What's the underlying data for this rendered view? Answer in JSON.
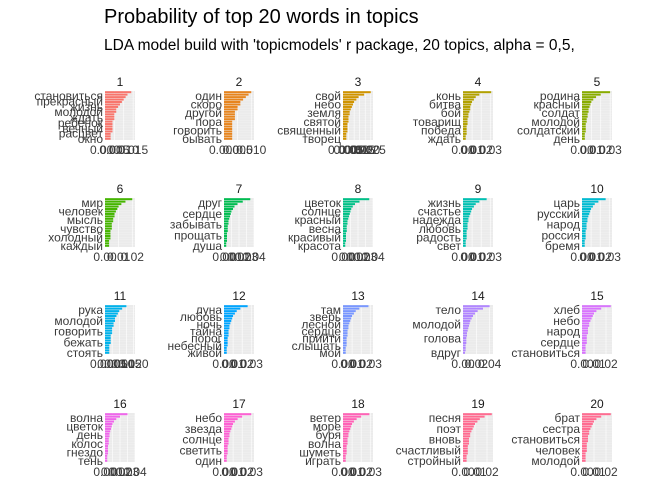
{
  "title": "Probability of top 20 words in topics",
  "subtitle": "LDA model build with 'topicmodels' r package, 20 topics, alpha = 0,5,",
  "chart_data": [
    {
      "type": "bar",
      "title": "1",
      "color": "#F8766D",
      "words": [
        "становиться",
        "прекрасный",
        "жизнь",
        "молодой",
        "ждать",
        "ребенок",
        "вечный",
        "расцвет",
        "окно"
      ],
      "values": [
        0.014,
        0.012,
        0.011,
        0.01,
        0.009,
        0.008,
        0.007,
        0.006,
        0.006,
        0.005,
        0.005,
        0.005,
        0.004,
        0.004,
        0.004,
        0.004,
        0.004,
        0.003,
        0.003,
        0.003
      ],
      "xticks": [
        "0.000",
        "0.005",
        "0.010",
        "0.015"
      ],
      "xlim": [
        0,
        0.016
      ]
    },
    {
      "type": "bar",
      "title": "2",
      "color": "#E7851E",
      "words": [
        "один",
        "скоро",
        "другой",
        "пора",
        "говорить",
        "бывать"
      ],
      "values": [
        0.01,
        0.009,
        0.008,
        0.007,
        0.006,
        0.006,
        0.005,
        0.005,
        0.004,
        0.004,
        0.004,
        0.004,
        0.003,
        0.003,
        0.003,
        0.003,
        0.003,
        0.003,
        0.003,
        0.003
      ],
      "xticks": [
        "0.000",
        "0.005",
        "0.010"
      ],
      "xlim": [
        0,
        0.011
      ]
    },
    {
      "type": "bar",
      "title": "3",
      "color": "#D09400",
      "words": [
        "свой",
        "небо",
        "земля",
        "святой",
        "священный",
        "творец"
      ],
      "values": [
        0.025,
        0.019,
        0.014,
        0.012,
        0.01,
        0.009,
        0.008,
        0.007,
        0.006,
        0.006,
        0.005,
        0.005,
        0.005,
        0.004,
        0.004,
        0.004,
        0.004,
        0.003,
        0.003,
        0.003
      ],
      "xticks": [
        "0.000",
        "0.005",
        "0.010",
        "0.015",
        "0.020",
        "0.025"
      ],
      "xlim": [
        0,
        0.027
      ]
    },
    {
      "type": "bar",
      "title": "4",
      "color": "#B2A100",
      "words": [
        "конь",
        "битва",
        "бой",
        "товарищ",
        "победа",
        "ждать"
      ],
      "values": [
        0.031,
        0.018,
        0.014,
        0.012,
        0.01,
        0.009,
        0.008,
        0.008,
        0.007,
        0.006,
        0.006,
        0.005,
        0.005,
        0.005,
        0.004,
        0.004,
        0.004,
        0.004,
        0.003,
        0.003
      ],
      "xticks": [
        "0.00",
        "0.01",
        "0.02",
        "0.03"
      ],
      "xlim": [
        0,
        0.033
      ]
    },
    {
      "type": "bar",
      "title": "5",
      "color": "#89AC00",
      "words": [
        "родина",
        "красный",
        "солдат",
        "молодой",
        "солдатский",
        "день"
      ],
      "values": [
        0.03,
        0.02,
        0.015,
        0.012,
        0.01,
        0.009,
        0.008,
        0.007,
        0.007,
        0.006,
        0.006,
        0.005,
        0.005,
        0.004,
        0.004,
        0.004,
        0.004,
        0.003,
        0.003,
        0.003
      ],
      "xticks": [
        "0.00",
        "0.01",
        "0.02",
        "0.03"
      ],
      "xlim": [
        0,
        0.032
      ]
    },
    {
      "type": "bar",
      "title": "6",
      "color": "#45B500",
      "words": [
        "мир",
        "человек",
        "мысль",
        "чувство",
        "холодный",
        "каждый"
      ],
      "values": [
        0.02,
        0.015,
        0.012,
        0.01,
        0.009,
        0.008,
        0.007,
        0.007,
        0.006,
        0.006,
        0.005,
        0.005,
        0.005,
        0.004,
        0.004,
        0.004,
        0.004,
        0.003,
        0.003,
        0.003
      ],
      "xticks": [
        "0.00",
        "0.01",
        "0.02"
      ],
      "xlim": [
        0,
        0.022
      ]
    },
    {
      "type": "bar",
      "title": "7",
      "color": "#00BC51",
      "words": [
        "друг",
        "сердце",
        "забывать",
        "прощать",
        "душа"
      ],
      "values": [
        0.035,
        0.025,
        0.018,
        0.014,
        0.012,
        0.01,
        0.009,
        0.008,
        0.007,
        0.006,
        0.006,
        0.005,
        0.005,
        0.005,
        0.004,
        0.004,
        0.004,
        0.004,
        0.003,
        0.003
      ],
      "xticks": [
        "0.00",
        "0.01",
        "0.02",
        "0.03",
        "0.04"
      ],
      "xlim": [
        0,
        0.04
      ]
    },
    {
      "type": "bar",
      "title": "8",
      "color": "#00C087",
      "words": [
        "цветок",
        "солнце",
        "красный",
        "весна",
        "красивый",
        "красота"
      ],
      "values": [
        0.035,
        0.022,
        0.016,
        0.013,
        0.011,
        0.01,
        0.009,
        0.008,
        0.007,
        0.006,
        0.006,
        0.005,
        0.005,
        0.005,
        0.004,
        0.004,
        0.004,
        0.004,
        0.003,
        0.003
      ],
      "xticks": [
        "0.00",
        "0.01",
        "0.02",
        "0.03",
        "0.04"
      ],
      "xlim": [
        0,
        0.04
      ]
    },
    {
      "type": "bar",
      "title": "9",
      "color": "#00C0B2",
      "words": [
        "жизнь",
        "счастье",
        "надежда",
        "любовь",
        "радость",
        "свет"
      ],
      "values": [
        0.026,
        0.018,
        0.014,
        0.012,
        0.01,
        0.009,
        0.008,
        0.007,
        0.006,
        0.006,
        0.005,
        0.005,
        0.005,
        0.004,
        0.004,
        0.004,
        0.004,
        0.003,
        0.003,
        0.003
      ],
      "xticks": [
        "0.00",
        "0.01",
        "0.02",
        "0.03"
      ],
      "xlim": [
        0,
        0.033
      ]
    },
    {
      "type": "bar",
      "title": "10",
      "color": "#00BBD2",
      "words": [
        "царь",
        "русский",
        "народ",
        "россия",
        "бремя"
      ],
      "values": [
        0.026,
        0.018,
        0.014,
        0.012,
        0.01,
        0.009,
        0.008,
        0.007,
        0.006,
        0.006,
        0.005,
        0.005,
        0.005,
        0.004,
        0.004,
        0.004,
        0.004,
        0.003,
        0.003,
        0.003
      ],
      "xticks": [
        "0.00",
        "0.01",
        "0.02",
        "0.03"
      ],
      "xlim": [
        0,
        0.033
      ]
    },
    {
      "type": "bar",
      "title": "11",
      "color": "#00B2EB",
      "words": [
        "рука",
        "молодой",
        "говорить",
        "бежать",
        "стоять"
      ],
      "values": [
        0.015,
        0.012,
        0.01,
        0.009,
        0.008,
        0.007,
        0.007,
        0.006,
        0.006,
        0.005,
        0.005,
        0.005,
        0.004,
        0.004,
        0.004,
        0.004,
        0.003,
        0.003,
        0.003,
        0.003
      ],
      "xticks": [
        "0.000",
        "0.005",
        "0.010",
        "0.015",
        "0.020"
      ],
      "xlim": [
        0,
        0.021
      ]
    },
    {
      "type": "bar",
      "title": "12",
      "color": "#00A5FF",
      "words": [
        "луна",
        "любовь",
        "ночь",
        "тайна",
        "порог",
        "небесный",
        "живой"
      ],
      "values": [
        0.026,
        0.018,
        0.014,
        0.012,
        0.01,
        0.009,
        0.008,
        0.007,
        0.006,
        0.006,
        0.005,
        0.005,
        0.005,
        0.004,
        0.004,
        0.004,
        0.004,
        0.003,
        0.003,
        0.003
      ],
      "xticks": [
        "0.00",
        "0.01",
        "0.02",
        "0.03"
      ],
      "xlim": [
        0,
        0.033
      ]
    },
    {
      "type": "bar",
      "title": "13",
      "color": "#7997FF",
      "words": [
        "там",
        "зверь",
        "лесной",
        "сердце",
        "прийти",
        "слышать",
        "мой"
      ],
      "values": [
        0.028,
        0.018,
        0.014,
        0.012,
        0.01,
        0.009,
        0.008,
        0.007,
        0.006,
        0.006,
        0.005,
        0.005,
        0.005,
        0.004,
        0.004,
        0.004,
        0.004,
        0.003,
        0.003,
        0.003
      ],
      "xticks": [
        "0.00",
        "0.01",
        "0.02",
        "0.03"
      ],
      "xlim": [
        0,
        0.033
      ]
    },
    {
      "type": "bar",
      "title": "14",
      "color": "#B186FF",
      "words": [
        "тело",
        "молодой",
        "голова",
        "вдруг"
      ],
      "values": [
        0.04,
        0.03,
        0.022,
        0.018,
        0.015,
        0.013,
        0.011,
        0.01,
        0.009,
        0.008,
        0.007,
        0.006,
        0.006,
        0.005,
        0.005,
        0.005,
        0.004,
        0.004,
        0.004,
        0.003
      ],
      "xticks": [
        "0.00",
        "0.02",
        "0.04"
      ],
      "xlim": [
        0,
        0.045
      ]
    },
    {
      "type": "bar",
      "title": "15",
      "color": "#D874FD",
      "words": [
        "хлеб",
        "небо",
        "народ",
        "сердце",
        "становиться"
      ],
      "values": [
        0.024,
        0.016,
        0.012,
        0.01,
        0.009,
        0.008,
        0.007,
        0.006,
        0.006,
        0.005,
        0.005,
        0.005,
        0.004,
        0.004,
        0.004,
        0.004,
        0.003,
        0.003,
        0.003,
        0.003
      ],
      "xticks": [
        "0.00",
        "0.01",
        "0.02"
      ],
      "xlim": [
        0,
        0.025
      ]
    },
    {
      "type": "bar",
      "title": "16",
      "color": "#EF67EB",
      "words": [
        "волна",
        "цветок",
        "день",
        "колос",
        "гнездо",
        "тень"
      ],
      "values": [
        0.03,
        0.02,
        0.015,
        0.012,
        0.01,
        0.009,
        0.008,
        0.007,
        0.006,
        0.006,
        0.005,
        0.005,
        0.005,
        0.004,
        0.004,
        0.004,
        0.004,
        0.003,
        0.003,
        0.003
      ],
      "xticks": [
        "0.00",
        "0.01",
        "0.02",
        "0.03",
        "0.04"
      ],
      "xlim": [
        0,
        0.04
      ]
    },
    {
      "type": "bar",
      "title": "17",
      "color": "#FD61D3",
      "words": [
        "небо",
        "звезда",
        "солнце",
        "светить",
        "один"
      ],
      "values": [
        0.03,
        0.02,
        0.015,
        0.012,
        0.01,
        0.009,
        0.008,
        0.007,
        0.006,
        0.006,
        0.005,
        0.005,
        0.005,
        0.004,
        0.004,
        0.004,
        0.004,
        0.003,
        0.003,
        0.003
      ],
      "xticks": [
        "0.00",
        "0.01",
        "0.02",
        "0.03"
      ],
      "xlim": [
        0,
        0.033
      ]
    },
    {
      "type": "bar",
      "title": "18",
      "color": "#FF63B6",
      "words": [
        "ветер",
        "море",
        "буря",
        "волна",
        "шуметь",
        "играть"
      ],
      "values": [
        0.029,
        0.02,
        0.015,
        0.012,
        0.01,
        0.009,
        0.008,
        0.007,
        0.006,
        0.006,
        0.005,
        0.005,
        0.005,
        0.004,
        0.004,
        0.004,
        0.004,
        0.003,
        0.003,
        0.003
      ],
      "xticks": [
        "0.00",
        "0.01",
        "0.02",
        "0.03"
      ],
      "xlim": [
        0,
        0.033
      ]
    },
    {
      "type": "bar",
      "title": "19",
      "color": "#FF6C91",
      "words": [
        "песня",
        "поэт",
        "вновь",
        "счастливый",
        "стройный"
      ],
      "values": [
        0.024,
        0.018,
        0.014,
        0.012,
        0.01,
        0.009,
        0.008,
        0.007,
        0.006,
        0.006,
        0.005,
        0.005,
        0.005,
        0.004,
        0.004,
        0.004,
        0.004,
        0.003,
        0.003,
        0.003
      ],
      "xticks": [
        "0.00",
        "0.01",
        "0.02"
      ],
      "xlim": [
        0,
        0.025
      ]
    },
    {
      "type": "bar",
      "title": "20",
      "color": "#FF6C91",
      "words": [
        "брат",
        "сестра",
        "становиться",
        "человек",
        "молодой"
      ],
      "values": [
        0.024,
        0.016,
        0.012,
        0.01,
        0.009,
        0.008,
        0.007,
        0.006,
        0.006,
        0.005,
        0.005,
        0.005,
        0.004,
        0.004,
        0.004,
        0.004,
        0.003,
        0.003,
        0.003,
        0.003
      ],
      "xticks": [
        "0.00",
        "0.01",
        "0.02"
      ],
      "xlim": [
        0,
        0.025
      ]
    }
  ]
}
